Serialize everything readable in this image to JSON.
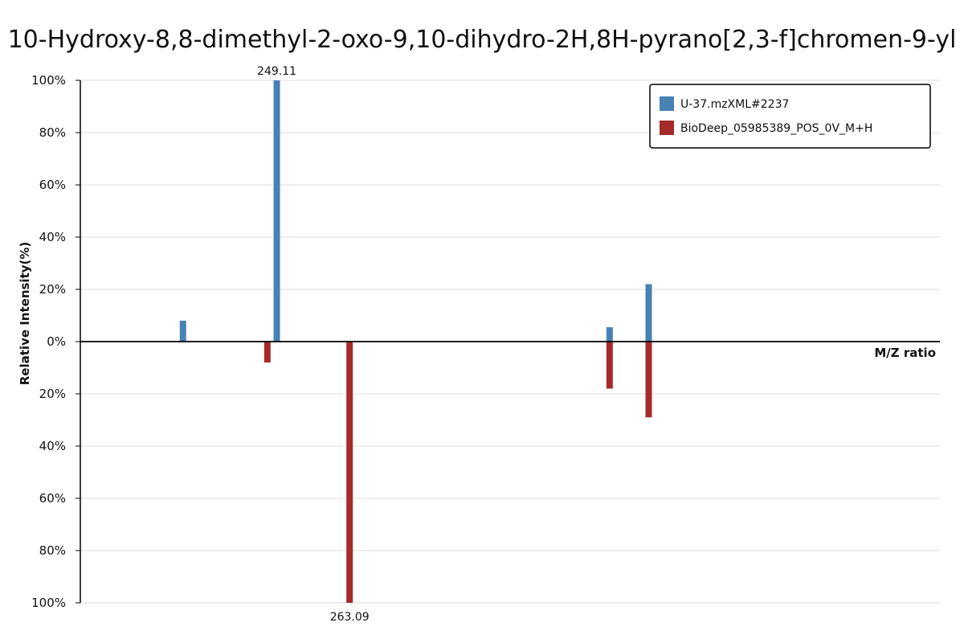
{
  "chart_data": {
    "type": "bar",
    "title": "10-Hydroxy-8,8-dimethyl-2-oxo-9,10-dihydro-2H,8H-pyrano[2,3-f]chromen-9-yl",
    "xlabel": "M/Z ratio",
    "ylabel": "Relative Intensity(%)",
    "y_ticks_top": [
      "100%",
      "80%",
      "60%",
      "40%",
      "20%",
      "0%"
    ],
    "y_ticks_bottom": [
      "20%",
      "40%",
      "60%",
      "80%",
      "100%"
    ],
    "ylim": [
      -100,
      100
    ],
    "grid": true,
    "legend_position": "top-right",
    "series": [
      {
        "name": "U-37.mzXML#2237",
        "color": "#4682b4",
        "direction": "up",
        "peaks": [
          {
            "mz": 231.1,
            "intensity": 8
          },
          {
            "mz": 249.11,
            "intensity": 100,
            "label": "249.11"
          },
          {
            "mz": 313.0,
            "intensity": 5.5
          },
          {
            "mz": 320.5,
            "intensity": 22
          }
        ]
      },
      {
        "name": "BioDeep_05985389_POS_0V_M+H",
        "color": "#a52a2a",
        "direction": "down",
        "peaks": [
          {
            "mz": 247.3,
            "intensity": 8
          },
          {
            "mz": 263.09,
            "intensity": 100,
            "label": "263.09"
          },
          {
            "mz": 313.0,
            "intensity": 18
          },
          {
            "mz": 320.5,
            "intensity": 29
          }
        ]
      }
    ],
    "x_range": [
      211.4,
      376.4
    ]
  }
}
